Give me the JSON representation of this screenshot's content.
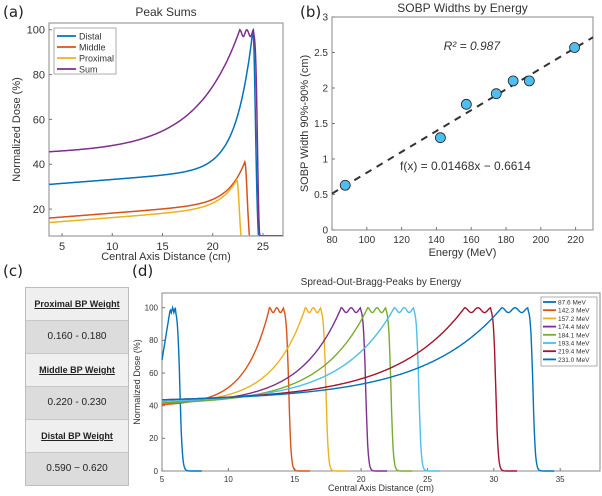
{
  "panel_labels": {
    "a": "(a)",
    "b": "(b)",
    "c": "(c)",
    "d": "(d)"
  },
  "chart_data": [
    {
      "id": "a",
      "type": "line",
      "title": "Peak Sums",
      "xlabel": "Central Axis Distance (cm)",
      "ylabel": "Normalized Dose (%)",
      "xlim": [
        3.7,
        27
      ],
      "ylim": [
        8,
        103
      ],
      "xticks": [
        5,
        10,
        15,
        20,
        25
      ],
      "yticks": [
        20,
        40,
        60,
        80,
        100
      ],
      "legend_position": "top-left",
      "series": [
        {
          "name": "Distal",
          "color": "#0072BD",
          "entrance_dose": 31,
          "peak_cm": 24.0,
          "peak_dose": 100
        },
        {
          "name": "Middle",
          "color": "#D95319",
          "entrance_dose": 16,
          "peak_cm": 23.2,
          "peak_dose": 41
        },
        {
          "name": "Proximal",
          "color": "#EDB120",
          "entrance_dose": 14,
          "peak_cm": 22.4,
          "peak_dose": 33
        },
        {
          "name": "Sum",
          "color": "#7E2F8E",
          "entrance_dose": 45,
          "plateau_cm": [
            22.7,
            24.1
          ],
          "peak_dose": 100
        }
      ]
    },
    {
      "id": "b",
      "type": "scatter",
      "title": "SOBP Widths by Energy",
      "xlabel": "Energy (MeV)",
      "ylabel": "SOBP Width 90%-90% (cm)",
      "xlim": [
        80,
        230
      ],
      "ylim": [
        0,
        3
      ],
      "xticks": [
        80,
        100,
        120,
        140,
        160,
        180,
        200,
        220
      ],
      "yticks": [
        0,
        0.5,
        1,
        1.5,
        2,
        2.5,
        3
      ],
      "point_color": "#4DBEEE",
      "x": [
        87.6,
        142.3,
        157.2,
        174.4,
        184.1,
        193.4,
        219.4
      ],
      "y": [
        0.63,
        1.3,
        1.77,
        1.92,
        2.1,
        2.1,
        2.57
      ],
      "fit": {
        "slope": 0.01468,
        "intercept": -0.6614,
        "style": "dashed"
      },
      "annotations": {
        "equation": "f(x) = 0.01468x − 0.6614",
        "r2": "R² = 0.987"
      }
    },
    {
      "id": "d",
      "type": "line",
      "title": "Spread-Out-Bragg-Peaks by Energy",
      "xlabel": "Central Axis Distance (cm)",
      "ylabel": "Normalized Dose (%)",
      "xlim": [
        5,
        38
      ],
      "ylim": [
        0,
        109
      ],
      "xticks": [
        5,
        10,
        15,
        20,
        25,
        30,
        35
      ],
      "yticks": [
        0,
        20,
        40,
        60,
        80,
        100
      ],
      "legend_position": "top-right",
      "series": [
        {
          "name": "87.6 MeV",
          "color": "#0072BD",
          "entrance_dose": 42,
          "plateau_cm": [
            5.6,
            6.0
          ]
        },
        {
          "name": "142.3 MeV",
          "color": "#D95319",
          "entrance_dose": 40,
          "plateau_cm": [
            13.1,
            14.2
          ]
        },
        {
          "name": "157.2 MeV",
          "color": "#EDB120",
          "entrance_dose": 41,
          "plateau_cm": [
            15.8,
            17.0
          ]
        },
        {
          "name": "174.4 MeV",
          "color": "#7E2F8E",
          "entrance_dose": 41,
          "plateau_cm": [
            18.5,
            20.0
          ]
        },
        {
          "name": "184.1 MeV",
          "color": "#77AC30",
          "entrance_dose": 41,
          "plateau_cm": [
            20.5,
            21.9
          ]
        },
        {
          "name": "193.4 MeV",
          "color": "#4DBEEE",
          "entrance_dose": 42,
          "plateau_cm": [
            22.5,
            24.0
          ]
        },
        {
          "name": "219.4 MeV",
          "color": "#A2142F",
          "entrance_dose": 43,
          "plateau_cm": [
            27.8,
            29.8
          ]
        },
        {
          "name": "231.0 MeV",
          "color": "#0072BD",
          "entrance_dose": 43,
          "plateau_cm": [
            30.6,
            32.6
          ]
        }
      ]
    }
  ],
  "table_c": {
    "rows": [
      {
        "header": "Proximal BP Weight",
        "value": "0.160 - 0.180"
      },
      {
        "header": "Middle BP Weight",
        "value": "0.220 - 0.230"
      },
      {
        "header": "Distal BP Weight",
        "value": "0.590 − 0.620"
      }
    ]
  }
}
